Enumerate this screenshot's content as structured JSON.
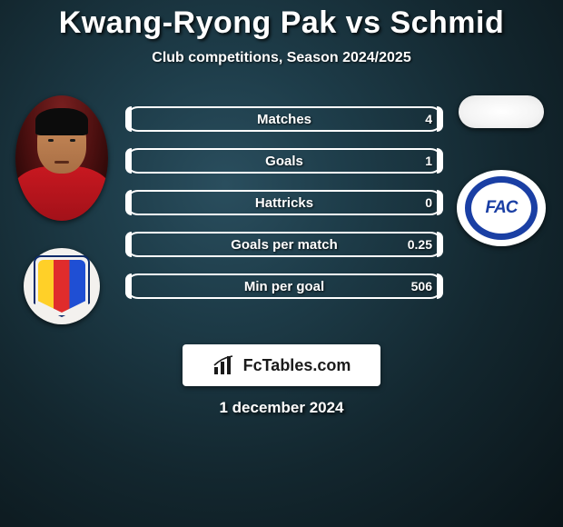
{
  "title": "Kwang-Ryong Pak vs Schmid",
  "subtitle": "Club competitions, Season 2024/2025",
  "date": "1 december 2024",
  "brand": "FcTables.com",
  "crest2_text": "FAC",
  "colors": {
    "bar_border": "#ffffff",
    "bar_fill": "#ffffff",
    "text": "#ffffff",
    "title_shadow": "rgba(0,0,0,0.8)"
  },
  "stats": [
    {
      "label": "Matches",
      "left_value": "",
      "right_value": "4",
      "left_fill_pct": 2,
      "right_fill_pct": 2
    },
    {
      "label": "Goals",
      "left_value": "",
      "right_value": "1",
      "left_fill_pct": 2,
      "right_fill_pct": 2
    },
    {
      "label": "Hattricks",
      "left_value": "",
      "right_value": "0",
      "left_fill_pct": 2,
      "right_fill_pct": 2
    },
    {
      "label": "Goals per match",
      "left_value": "",
      "right_value": "0.25",
      "left_fill_pct": 2,
      "right_fill_pct": 2
    },
    {
      "label": "Min per goal",
      "left_value": "",
      "right_value": "506",
      "left_fill_pct": 2,
      "right_fill_pct": 2
    }
  ]
}
